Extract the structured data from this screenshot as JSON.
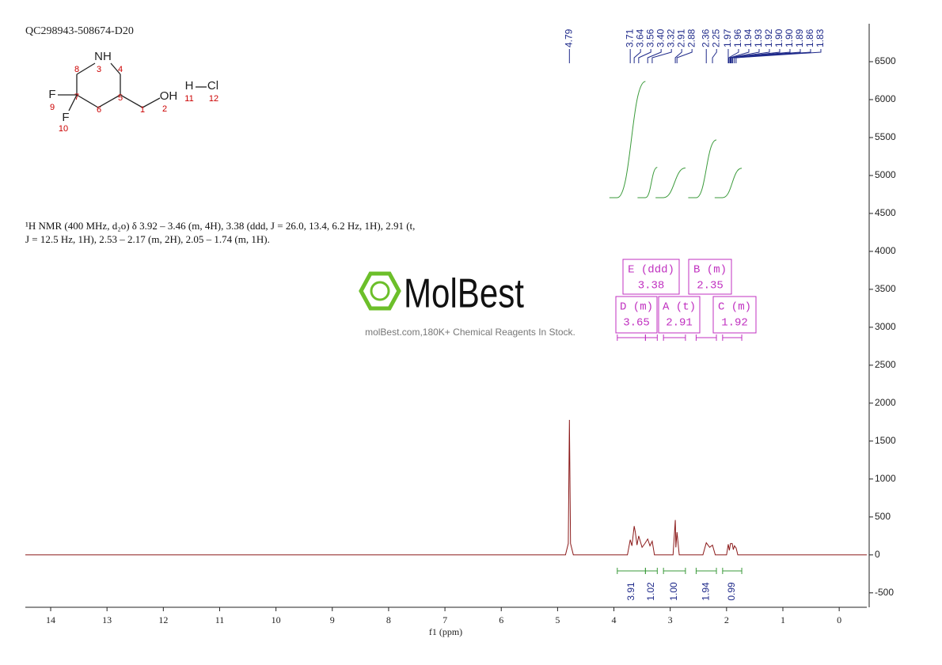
{
  "chart_data": {
    "type": "line",
    "sample_id": "QC298943-508674-D20",
    "description": [
      "¹H NMR (400 MHz, d₂o) δ 3.92 – 3.46 (m, 4H), 3.38 (ddd, J = 26.0, 13.4, 6.2 Hz, 1H), 2.91 (t,",
      "J = 12.5 Hz, 1H), 2.53 – 2.17 (m, 2H), 2.05 – 1.74 (m, 1H)."
    ],
    "structure": {
      "labels": [
        "NH",
        "3",
        "8",
        "4",
        "F",
        "9",
        "7",
        "5",
        "6",
        "1",
        "OH",
        "2",
        "F",
        "10",
        "H",
        "11",
        "Cl",
        "12"
      ]
    },
    "watermark": {
      "logo": "MolBest",
      "tagline": "molBest.com,180K+ Chemical Reagents In Stock."
    },
    "xlabel": "f1 (ppm)",
    "xlim": [
      14.45,
      -0.49
    ],
    "xticks": [
      14,
      13,
      12,
      11,
      10,
      9,
      8,
      7,
      6,
      5,
      4,
      3,
      2,
      1,
      0
    ],
    "ylim": [
      -690,
      7000
    ],
    "yticks": [
      -500,
      0,
      500,
      1000,
      1500,
      2000,
      2500,
      3000,
      3500,
      4000,
      4500,
      5000,
      5500,
      6000,
      6500
    ],
    "series": [
      {
        "color": "#8b1a1a",
        "x": [
          14.45,
          4.86,
          4.81,
          4.79,
          4.77,
          4.72,
          3.76,
          3.71,
          3.68,
          3.64,
          3.62,
          3.59,
          3.56,
          3.5,
          3.45,
          3.4,
          3.36,
          3.32,
          3.28,
          2.95,
          2.91,
          2.9,
          2.88,
          2.84,
          2.42,
          2.36,
          2.3,
          2.25,
          2.2,
          2.0,
          1.97,
          1.95,
          1.93,
          1.9,
          1.88,
          1.86,
          1.83,
          1.8,
          -0.49
        ],
        "values": [
          0,
          0,
          150,
          1780,
          150,
          0,
          0,
          200,
          120,
          380,
          300,
          130,
          250,
          100,
          150,
          210,
          120,
          180,
          0,
          0,
          460,
          100,
          300,
          0,
          0,
          160,
          100,
          130,
          0,
          0,
          140,
          60,
          150,
          150,
          70,
          120,
          90,
          0,
          0
        ]
      }
    ],
    "peaks": [
      4.79,
      3.71,
      3.64,
      3.56,
      {
        "value": 3.4,
        "label": "3.40"
      },
      3.32,
      2.91,
      2.88,
      2.36,
      2.25,
      1.97,
      1.96,
      1.94,
      1.93,
      1.92,
      {
        "value": 1.9,
        "label": "1.90"
      },
      {
        "value": 1.9,
        "label": "1.90"
      },
      1.89,
      1.86,
      1.83
    ],
    "peak_color": "#1f2a8a",
    "integrals": {
      "color": "#3a9a3a",
      "ranges": [
        [
          3.94,
          3.44
        ],
        [
          3.44,
          3.23
        ],
        [
          3.12,
          2.73
        ],
        [
          2.54,
          2.18
        ],
        [
          2.07,
          1.73
        ]
      ],
      "values": [
        3.91,
        1.02,
        {
          "value": 1,
          "label": "1.00"
        },
        1.94,
        0.99
      ]
    },
    "multiplets": {
      "color": "#c030c0",
      "items": [
        {
          "label": "E (ddd)",
          "shift": 3.38
        },
        {
          "label": "B (m)",
          "shift": 2.35
        },
        {
          "label": "D (m)",
          "shift": 3.65
        },
        {
          "label": "A (t)",
          "shift": 2.91
        },
        {
          "label": "C (m)",
          "shift": 1.92
        }
      ]
    }
  }
}
